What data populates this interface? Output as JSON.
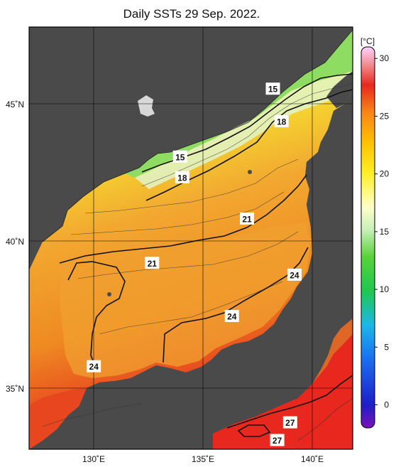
{
  "title": "Daily SSTs 29 Sep. 2022.",
  "colorbar": {
    "unit": "[°C]",
    "ticks": [
      30,
      25,
      20,
      15,
      10,
      5,
      0
    ],
    "range": [
      -2,
      31
    ]
  },
  "axes": {
    "lat_labels": [
      "45˚N",
      "40˚N",
      "35˚N"
    ],
    "lon_labels": [
      "130˚E",
      "135˚E",
      "140˚E"
    ],
    "lat_values": [
      45,
      40,
      35
    ],
    "lon_values": [
      130,
      135,
      140
    ],
    "lon_range": [
      127,
      142
    ],
    "lat_range": [
      33,
      47.3
    ]
  },
  "contour_labels": [
    {
      "text": "15",
      "lon": 138.3,
      "lat": 45.2
    },
    {
      "text": "18",
      "lon": 138.7,
      "lat": 44.1
    },
    {
      "text": "15",
      "lon": 134.0,
      "lat": 42.9
    },
    {
      "text": "18",
      "lon": 134.1,
      "lat": 42.2
    },
    {
      "text": "21",
      "lon": 137.1,
      "lat": 40.8
    },
    {
      "text": "21",
      "lon": 132.7,
      "lat": 39.3
    },
    {
      "text": "24",
      "lon": 139.3,
      "lat": 38.9
    },
    {
      "text": "24",
      "lon": 136.4,
      "lat": 37.5
    },
    {
      "text": "24",
      "lon": 130.0,
      "lat": 35.8
    },
    {
      "text": "27",
      "lon": 139.1,
      "lat": 33.9
    },
    {
      "text": "27",
      "lon": 138.5,
      "lat": 33.3
    }
  ],
  "colors": {
    "land": "#4a4a4a",
    "water_cool": "#7ddc4e",
    "water_warm": "#f09020",
    "water_hot": "#e8281e",
    "contour": "#111111"
  }
}
